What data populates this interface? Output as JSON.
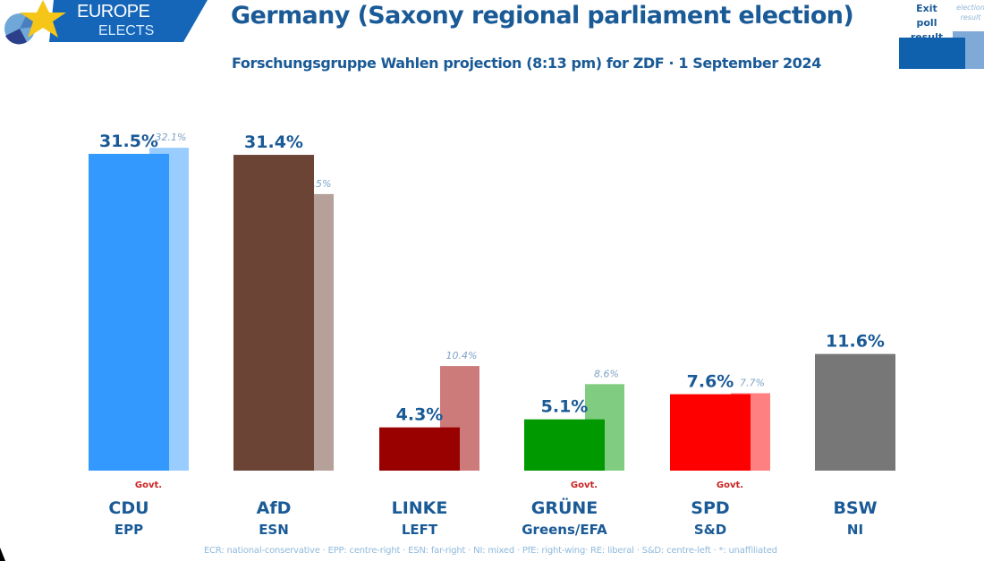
{
  "brand": {
    "line1": "EUROPE",
    "line2": "ELECTS",
    "colors": {
      "banner": "#1565b8",
      "star": "#f5c518"
    }
  },
  "header": {
    "title": "Germany (Saxony regional parliament election)",
    "subtitle": "Forschungsgruppe Wahlen projection (8:13 pm) for ZDF · 1 September 2024"
  },
  "legend": {
    "exit_poll_label": "Exit poll result",
    "election_label": "election result"
  },
  "footnote": "ECR: national-conservative · EPP: centre-right · ESN: far-right · NI: mixed · PfE: right-wing· RE: liberal · S&D: centre-left · *: unaffiliated",
  "chart_data": {
    "type": "bar",
    "title": "Germany (Saxony regional parliament election)",
    "subtitle": "Forschungsgruppe Wahlen projection (8:13 pm) for ZDF · 1 September 2024",
    "xlabel": "",
    "ylabel": "",
    "ylim": [
      0,
      32.1
    ],
    "grid": false,
    "legend_position": "top-right",
    "categories": [
      "CDU",
      "AfD",
      "LINKE",
      "GRÜNE",
      "SPD",
      "BSW"
    ],
    "groups": [
      "EPP",
      "ESN",
      "LEFT",
      "Greens/EFA",
      "S&D",
      "NI"
    ],
    "government": [
      true,
      false,
      false,
      true,
      true,
      false
    ],
    "series": [
      {
        "name": "Exit poll result",
        "values": [
          31.5,
          31.4,
          4.3,
          5.1,
          7.6,
          11.6
        ],
        "labels": [
          "31.5%",
          "31.4%",
          "4.3%",
          "5.1%",
          "7.6%",
          "11.6%"
        ]
      },
      {
        "name": "election result",
        "values": [
          32.1,
          27.5,
          10.4,
          8.6,
          7.7,
          null
        ],
        "labels": [
          "32.1%",
          "27.5%",
          "10.4%",
          "8.6%",
          "7.7%",
          ""
        ]
      }
    ],
    "colors": {
      "current": [
        "#3399ff",
        "#6b4436",
        "#990000",
        "#009900",
        "#ff0000",
        "#777777"
      ],
      "previous": [
        "#99ccff",
        "#b5a19a",
        "#cc7a7a",
        "#80cc80",
        "#ff8080",
        null
      ]
    },
    "govt_label": "Govt.",
    "value_label_color": "#1a5a96",
    "prev_label_color": "#7fa3c6",
    "party_label_color": "#1a5a96",
    "govt_label_color": "#cc2222"
  }
}
